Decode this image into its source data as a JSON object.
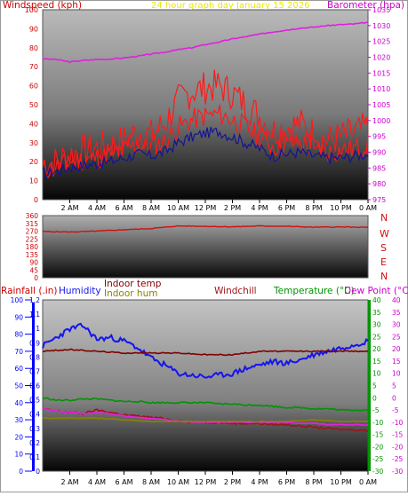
{
  "header": {
    "left_title": "Windspeed (kph)",
    "center_title": "24 hour graph day   January 15 2026",
    "right_title": "Barometer (hpa)"
  },
  "colors": {
    "wind": "#ff1a1a",
    "gust": "#ff1a1a",
    "wind_avg": "#141496",
    "barometer": "#e020e0",
    "direction": "#d01010",
    "humidity": "#1515ee",
    "windchill": "#a01414",
    "temperature": "#009400",
    "dewpoint": "#e81ee8",
    "indoor_hum": "#8a8200",
    "rainfall": "#0000ff",
    "indoor_temp": "#800000",
    "axis_left": "#cc0000",
    "axis_right": "#cc00cc",
    "axis_temp": "#009400",
    "axis_dew": "#cc00cc"
  },
  "time_labels": [
    "2 AM",
    "4 AM",
    "6 AM",
    "8 AM",
    "10 AM",
    "12 PM",
    "2 PM",
    "4 PM",
    "6 PM",
    "8 PM",
    "10 PM",
    "0 AM"
  ],
  "chart_data": [
    {
      "type": "line",
      "name": "wind-barometer",
      "title": "24 hour graph day   January 15 2026",
      "x_label_hours": [
        2,
        4,
        6,
        8,
        10,
        12,
        14,
        16,
        18,
        20,
        22,
        24
      ],
      "y_left": {
        "label": "Windspeed (kph)",
        "ylim": [
          0,
          100
        ],
        "ticks": [
          0,
          10,
          20,
          30,
          40,
          50,
          60,
          70,
          80,
          90,
          100
        ]
      },
      "y_right": {
        "label": "Barometer (hpa)",
        "ylim": [
          975,
          1035
        ],
        "ticks": [
          975,
          980,
          985,
          990,
          995,
          1000,
          1005,
          1010,
          1015,
          1020,
          1025,
          1030,
          1035
        ]
      },
      "series": [
        {
          "name": "Barometer (hpa)",
          "axis": "right",
          "x": [
            0,
            1,
            2,
            3,
            4,
            5,
            6,
            7,
            8,
            9,
            10,
            11,
            12,
            13,
            14,
            15,
            16,
            17,
            18,
            19,
            20,
            21,
            22,
            23,
            24
          ],
          "values": [
            1019.5,
            1019.3,
            1018.5,
            1019,
            1019.3,
            1019.4,
            1019.8,
            1020.3,
            1021,
            1021.6,
            1022.4,
            1023,
            1024,
            1024.8,
            1025.8,
            1026.5,
            1027.3,
            1028,
            1028.6,
            1029.2,
            1029.5,
            1030,
            1030.3,
            1030.5,
            1031
          ]
        },
        {
          "name": "Wind gust",
          "axis": "left",
          "x": [
            0,
            1,
            2,
            3,
            4,
            5,
            6,
            7,
            8,
            9,
            10,
            11,
            12,
            13,
            14,
            15,
            16,
            17,
            18,
            19,
            20,
            21,
            22,
            23,
            24
          ],
          "values": [
            19,
            20,
            24,
            26,
            27,
            29,
            31,
            36,
            34,
            40,
            52,
            57,
            59,
            60,
            56,
            50,
            44,
            36,
            38,
            40,
            35,
            31,
            33,
            35,
            38
          ]
        },
        {
          "name": "Wind speed",
          "axis": "left",
          "x": [
            0,
            1,
            2,
            3,
            4,
            5,
            6,
            7,
            8,
            9,
            10,
            11,
            12,
            13,
            14,
            15,
            16,
            17,
            18,
            19,
            20,
            21,
            22,
            23,
            24
          ],
          "values": [
            16,
            17,
            20,
            21,
            22,
            24,
            26,
            29,
            28,
            31,
            38,
            42,
            44,
            45,
            42,
            38,
            33,
            28,
            29,
            30,
            28,
            25,
            26,
            27,
            29
          ]
        },
        {
          "name": "Wind average",
          "axis": "left",
          "x": [
            0,
            1,
            2,
            3,
            4,
            5,
            6,
            7,
            8,
            9,
            10,
            11,
            12,
            13,
            14,
            15,
            16,
            17,
            18,
            19,
            20,
            21,
            22,
            23,
            24
          ],
          "values": [
            14,
            15,
            17,
            18,
            19,
            20,
            22,
            24,
            23,
            25,
            30,
            33,
            35,
            36,
            33,
            30,
            27,
            23,
            24,
            25,
            23,
            22,
            22,
            23,
            24
          ]
        }
      ]
    },
    {
      "type": "line",
      "name": "wind-direction",
      "y_left": {
        "ylim": [
          0,
          360
        ],
        "ticks": [
          0,
          45,
          90,
          135,
          180,
          225,
          270,
          315,
          360
        ]
      },
      "y_right": {
        "ticks": [
          "N",
          "W",
          "S",
          "E",
          "N"
        ]
      },
      "series": [
        {
          "name": "Wind direction",
          "x": [
            0,
            2,
            4,
            6,
            8,
            10,
            12,
            14,
            16,
            18,
            20,
            22,
            24
          ],
          "values": [
            268,
            265,
            270,
            278,
            285,
            300,
            298,
            295,
            300,
            298,
            293,
            294,
            292
          ]
        }
      ]
    },
    {
      "type": "line",
      "name": "temperature-humidity",
      "y_axes": [
        {
          "label": "Rainfall (.in)",
          "ylim": [
            0,
            100
          ],
          "ticks": [
            0,
            10,
            20,
            30,
            40,
            50,
            60,
            70,
            80,
            90,
            100
          ]
        },
        {
          "label": "Humidity",
          "ylim": [
            0,
            1.2
          ],
          "ticks": [
            0,
            0.1,
            0.2,
            0.3,
            0.4,
            0.5,
            0.6,
            0.7,
            0.8,
            0.9,
            1,
            1.1,
            1.2
          ]
        },
        {
          "label": "Temperature (°C)",
          "ylim": [
            -30,
            40
          ],
          "ticks": [
            -30,
            -25,
            -20,
            -15,
            -10,
            -5,
            0,
            5,
            10,
            15,
            20,
            25,
            30,
            35,
            40
          ]
        },
        {
          "label": "Dew Point (°C)",
          "ylim": [
            -30,
            40
          ],
          "ticks": [
            -30,
            -25,
            -20,
            -15,
            -10,
            -5,
            0,
            5,
            10,
            15,
            20,
            25,
            30,
            35,
            40
          ]
        }
      ],
      "legend": [
        "Rainfall (.in)",
        "Humidity",
        "Indoor temp",
        "Indoor hum",
        "Windchill",
        "Temperature (°C)",
        "Dew Point (°C)"
      ],
      "series": [
        {
          "name": "Humidity",
          "axis": "humidity_pct",
          "x": [
            0,
            1,
            2,
            3,
            4,
            5,
            6,
            7,
            8,
            9,
            10,
            11,
            12,
            13,
            14,
            15,
            16,
            17,
            18,
            19,
            20,
            21,
            22,
            23,
            24
          ],
          "values": [
            73,
            78,
            83,
            85,
            77,
            78,
            76,
            72,
            66,
            62,
            57,
            56,
            55,
            56,
            57,
            60,
            62,
            64,
            63,
            65,
            68,
            70,
            72,
            74,
            76
          ]
        },
        {
          "name": "Indoor temp",
          "axis": "percent",
          "x": [
            0,
            2,
            4,
            6,
            8,
            10,
            12,
            14,
            16,
            18,
            20,
            22,
            24
          ],
          "values": [
            70,
            71,
            70,
            69,
            69,
            69,
            68,
            68,
            70,
            70,
            70,
            70,
            70
          ]
        },
        {
          "name": "Temperature (°C)",
          "axis": "temperature",
          "x": [
            0,
            1,
            2,
            3,
            4,
            5,
            6,
            7,
            8,
            9,
            10,
            11,
            12,
            13,
            14,
            15,
            16,
            17,
            18,
            19,
            20,
            21,
            22,
            23,
            24
          ],
          "values": [
            0,
            -1,
            -1,
            -0.5,
            -0.5,
            -1,
            -1.5,
            -1.5,
            -2,
            -2,
            -2,
            -2,
            -2,
            -2.5,
            -2.5,
            -3,
            -3,
            -3.5,
            -4,
            -4,
            -4.5,
            -4.5,
            -5,
            -5,
            -5
          ]
        },
        {
          "name": "Windchill",
          "axis": "temperature",
          "x": [
            0,
            1,
            2,
            3,
            4,
            5,
            6,
            7,
            8,
            9,
            10,
            11,
            12,
            13,
            14,
            15,
            16,
            17,
            18,
            19,
            20,
            21,
            22,
            23,
            24
          ],
          "values": [
            -4.5,
            -5.5,
            -6,
            -6.5,
            -5,
            -6,
            -7,
            -7.5,
            -8,
            -8.5,
            -9.5,
            -10,
            -10,
            -10,
            -10.5,
            -10.5,
            -10.5,
            -11,
            -11,
            -11.5,
            -12,
            -12.5,
            -13,
            -13,
            -13.5
          ]
        },
        {
          "name": "Dew Point (°C)",
          "axis": "temperature",
          "x": [
            0,
            1,
            2,
            3,
            4,
            5,
            6,
            7,
            8,
            9,
            10,
            11,
            12,
            13,
            14,
            15,
            16,
            17,
            18,
            19,
            20,
            21,
            22,
            23,
            24
          ],
          "values": [
            -4.5,
            -5.5,
            -6,
            -6.5,
            -6,
            -6.5,
            -7.5,
            -8,
            -8.5,
            -9,
            -9.5,
            -10,
            -10,
            -10,
            -10,
            -10,
            -10,
            -10,
            -10,
            -10.5,
            -10.5,
            -11,
            -11,
            -11,
            -11
          ]
        },
        {
          "name": "Indoor hum",
          "axis": "percent",
          "x": [
            0,
            2,
            4,
            6,
            8,
            10,
            12,
            14,
            16,
            18,
            20,
            22,
            24
          ],
          "values": [
            31,
            31,
            31,
            30,
            29,
            29,
            29,
            29,
            29,
            29,
            30,
            29,
            29
          ]
        }
      ]
    }
  ]
}
